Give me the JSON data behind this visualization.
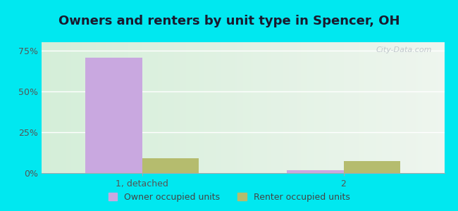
{
  "title": "Owners and renters by unit type in Spencer, OH",
  "categories": [
    "1, detached",
    "2"
  ],
  "owner_values": [
    70.5,
    1.8
  ],
  "renter_values": [
    9.0,
    7.5
  ],
  "owner_color": "#c9a8e0",
  "renter_color": "#b5bc6e",
  "owner_label": "Owner occupied units",
  "renter_label": "Renter occupied units",
  "ylim": [
    0,
    80
  ],
  "yticks": [
    0,
    25,
    50,
    75
  ],
  "yticklabels": [
    "0%",
    "25%",
    "50%",
    "75%"
  ],
  "outer_bg": "#00e8f0",
  "watermark": "City-Data.com",
  "bar_width": 0.28,
  "title_fontsize": 13,
  "legend_fontsize": 9,
  "tick_fontsize": 9
}
